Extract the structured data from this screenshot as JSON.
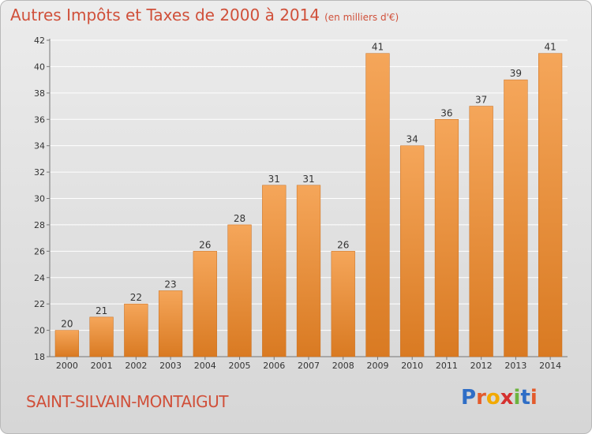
{
  "header": {
    "title": "Autres Impôts et Taxes de 2000 à 2014",
    "subtitle": "(en milliers d'€)"
  },
  "footer": {
    "commune": "SAINT-SILVAIN-MONTAIGUT",
    "brand_letters": [
      "P",
      "r",
      "o",
      "x",
      "i",
      "t",
      "i"
    ],
    "brand_colors": [
      "#2f6ec6",
      "#e35b2c",
      "#f2a900",
      "#d5312f",
      "#6cb33e",
      "#2f6ec6",
      "#e35b2c"
    ]
  },
  "chart_data": {
    "type": "bar",
    "title": "Autres Impôts et Taxes de 2000 à 2014",
    "subtitle": "(en milliers d'€)",
    "categories": [
      "2000",
      "2001",
      "2002",
      "2003",
      "2004",
      "2005",
      "2006",
      "2007",
      "2008",
      "2009",
      "2010",
      "2011",
      "2012",
      "2013",
      "2014"
    ],
    "values": [
      20,
      21,
      22,
      23,
      26,
      28,
      31,
      31,
      26,
      41,
      34,
      36,
      37,
      39,
      41
    ],
    "ylim": [
      18,
      42
    ],
    "yticks": [
      18,
      20,
      22,
      24,
      26,
      28,
      30,
      32,
      34,
      36,
      38,
      40,
      42
    ],
    "grid": true,
    "colors": {
      "bar_top": "#f5a65a",
      "bar_bottom": "#d97a22",
      "bar_edge": "#c96d1c"
    }
  }
}
